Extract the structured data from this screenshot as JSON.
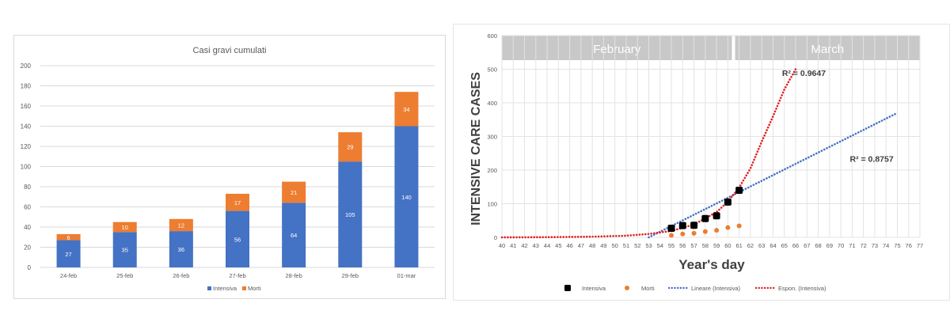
{
  "chart_data": [
    {
      "type": "bar",
      "stacked": true,
      "title": "Casi gravi cumulati",
      "categories": [
        "24-feb",
        "25-feb",
        "26-feb",
        "27-feb",
        "28-feb",
        "29-feb",
        "01-mar"
      ],
      "series": [
        {
          "name": "Intensiva",
          "color": "#4472c4",
          "values": [
            27,
            35,
            36,
            56,
            64,
            105,
            140
          ]
        },
        {
          "name": "Morti",
          "color": "#ed7d31",
          "values": [
            6,
            10,
            12,
            17,
            21,
            29,
            34
          ]
        }
      ],
      "ylim": [
        0,
        200
      ],
      "yticks": [
        "0",
        "20",
        "40",
        "60",
        "80",
        "100",
        "120",
        "140",
        "160",
        "180",
        "200"
      ],
      "legend": "bottom",
      "grid": true
    },
    {
      "type": "scatter",
      "xlabel": "Year's day",
      "ylabel": "INTENSIVE CARE CASES",
      "xlim": [
        40,
        77
      ],
      "ylim": [
        0,
        600
      ],
      "xticks": [
        "40",
        "41",
        "42",
        "43",
        "44",
        "45",
        "46",
        "47",
        "48",
        "49",
        "50",
        "51",
        "52",
        "53",
        "54",
        "55",
        "56",
        "57",
        "58",
        "59",
        "60",
        "61",
        "62",
        "63",
        "64",
        "65",
        "66",
        "67",
        "68",
        "69",
        "70",
        "71",
        "72",
        "73",
        "74",
        "75",
        "76",
        "77"
      ],
      "yticks": [
        "0",
        "100",
        "200",
        "300",
        "400",
        "500",
        "600"
      ],
      "month_bands": [
        {
          "label": "February",
          "from": 40,
          "to": 60.5
        },
        {
          "label": "March",
          "from": 60.5,
          "to": 77
        }
      ],
      "series": [
        {
          "name": "Intensiva",
          "color": "#000000",
          "x": [
            55,
            56,
            57,
            58,
            59,
            60,
            61
          ],
          "y": [
            27,
            35,
            36,
            56,
            64,
            105,
            140
          ]
        },
        {
          "name": "Morti",
          "color": "#ed7d31",
          "x": [
            55,
            56,
            57,
            58,
            59,
            60,
            61
          ],
          "y": [
            6,
            10,
            12,
            17,
            21,
            29,
            34
          ]
        },
        {
          "name": "Lineare (Intensiva)",
          "color": "#4472c4",
          "x": [
            53,
            75
          ],
          "y": [
            0,
            370
          ]
        },
        {
          "name": "Espon. (Intensiva)",
          "color": "#e02020",
          "x": [
            40,
            44,
            48,
            51,
            53,
            55,
            57,
            59,
            60,
            61,
            62,
            63,
            64,
            65,
            66
          ],
          "y": [
            0,
            0.5,
            2,
            5,
            10,
            19,
            38,
            75,
            106,
            148,
            205,
            285,
            360,
            440,
            500
          ]
        }
      ],
      "annotations": [
        {
          "text": "R² = 0.9647",
          "x": 64.8,
          "y": 480
        },
        {
          "text": "R² = 0.8757",
          "x": 70.8,
          "y": 225
        }
      ],
      "legend": "bottom",
      "grid": true
    }
  ]
}
